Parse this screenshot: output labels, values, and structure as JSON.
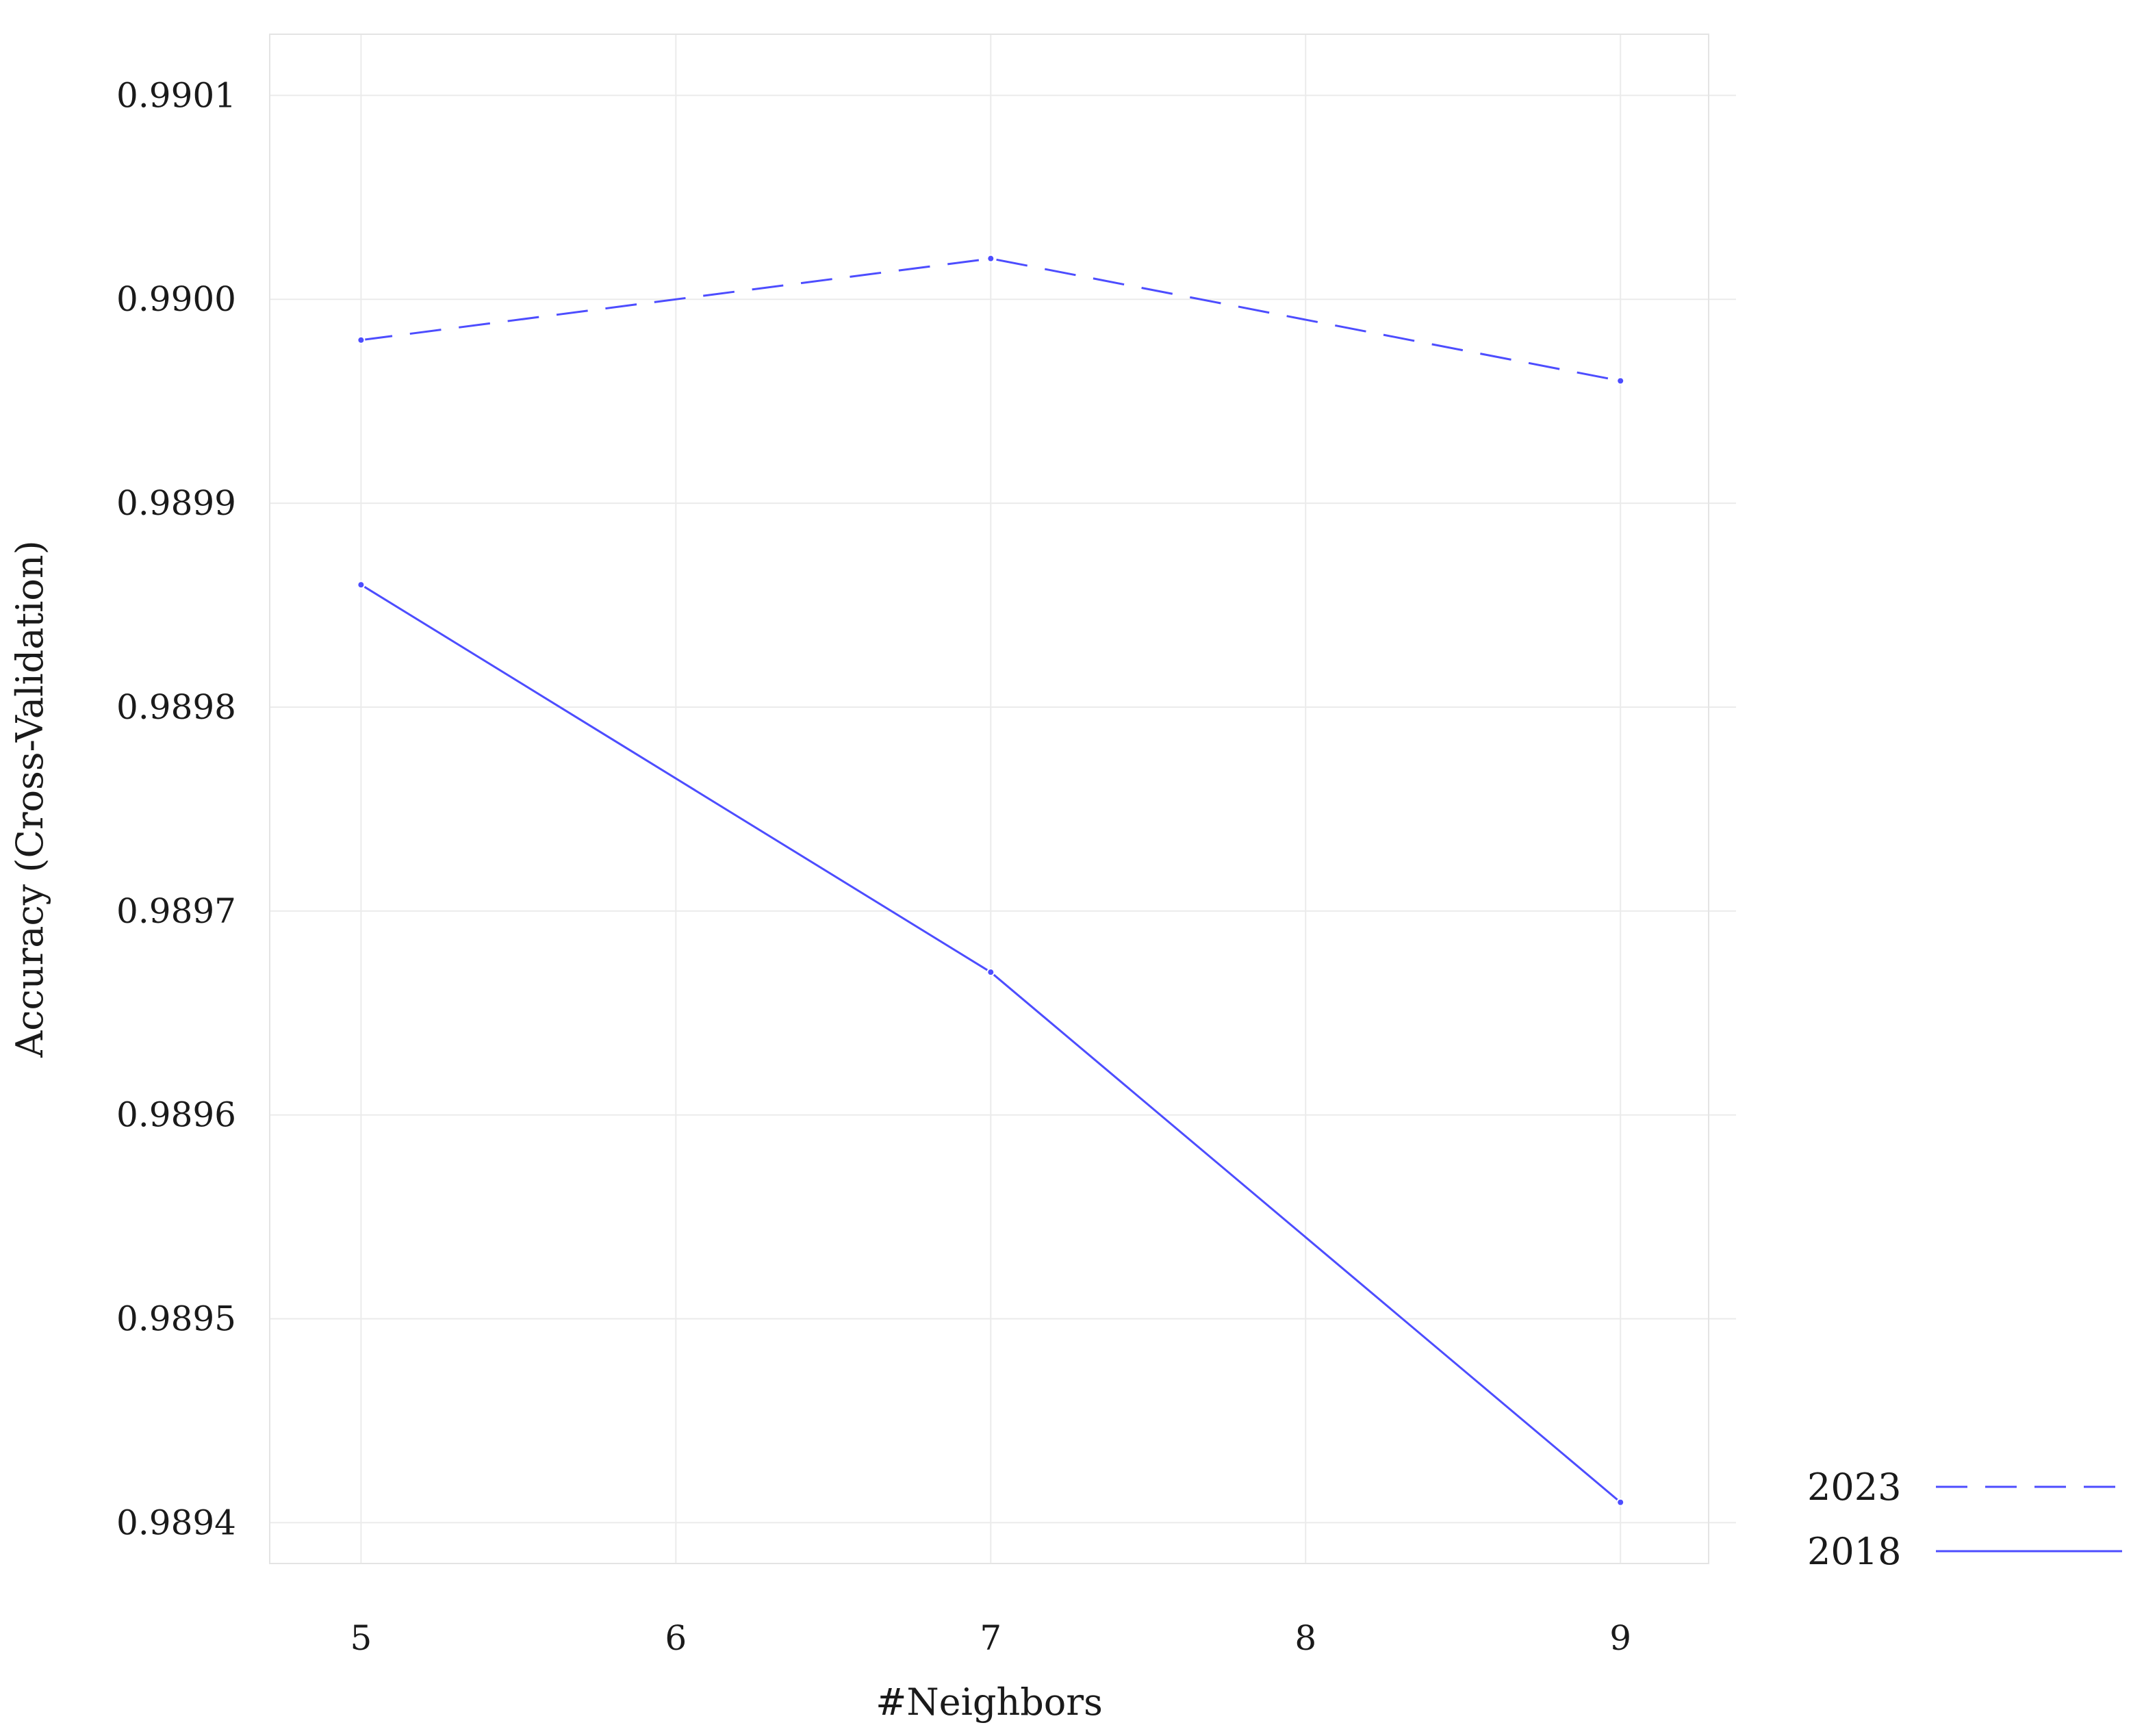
{
  "chart_data": {
    "type": "line",
    "title": "",
    "xlabel": "#Neighbors",
    "ylabel": "Accuracy (Cross-Validation)",
    "x": [
      5,
      7,
      9
    ],
    "xlim": [
      4.71,
      9.28
    ],
    "ylim": [
      0.98938,
      0.99013
    ],
    "xticks": [
      5,
      6,
      7,
      8,
      9
    ],
    "xtick_labels": [
      "5",
      "6",
      "7",
      "8",
      "9"
    ],
    "yticks": [
      0.9894,
      0.9895,
      0.9896,
      0.9897,
      0.9898,
      0.9899,
      0.99,
      0.9901
    ],
    "ytick_labels": [
      "0.9894",
      "0.9895",
      "0.9896",
      "0.9897",
      "0.9898",
      "0.9899",
      "0.9900",
      "0.9901"
    ],
    "grid": true,
    "legend_position": "bottom-right, outside plot",
    "series": [
      {
        "name": "2023",
        "values": [
          0.98998,
          0.99002,
          0.98996
        ],
        "color": "#4d4dff",
        "line_style": "dashed"
      },
      {
        "name": "2018",
        "values": [
          0.98986,
          0.98967,
          0.98941
        ],
        "color": "#4d4dff",
        "line_style": "solid"
      }
    ]
  }
}
